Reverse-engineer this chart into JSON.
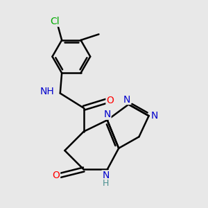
{
  "background_color": "#e8e8e8",
  "bond_color": "#000000",
  "atom_colors": {
    "N": "#0000cc",
    "O": "#ff0000",
    "Cl": "#00aa00",
    "C": "#000000",
    "H": "#4a9090"
  },
  "bond_width": 1.8,
  "dbo": 0.06,
  "figsize": [
    3.0,
    3.0
  ],
  "dpi": 100,
  "xlim": [
    -0.5,
    5.5
  ],
  "ylim": [
    -0.5,
    5.8
  ],
  "font_size": 10
}
